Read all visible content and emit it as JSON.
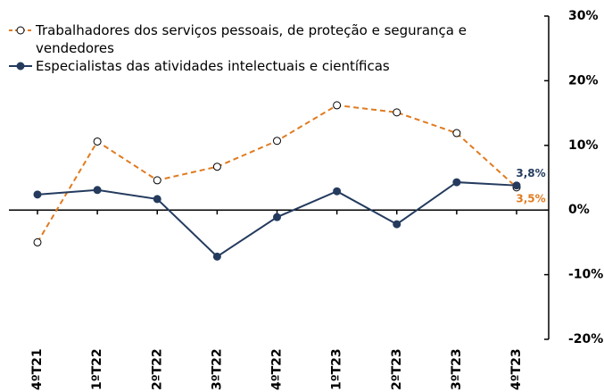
{
  "chart_data": {
    "type": "line",
    "categories": [
      "4ºT21",
      "1ºT22",
      "2ºT22",
      "3ºT22",
      "4ºT22",
      "1ºT23",
      "2ºT23",
      "3ºT23",
      "4ºT23"
    ],
    "series": [
      {
        "name": "Trabalhadores dos serviços pessoais, de proteção e segurança e vendedores",
        "color": "#e07b20",
        "dashed": true,
        "marker": "open",
        "values": [
          -5,
          10.6,
          4.6,
          6.7,
          10.7,
          16.2,
          15.1,
          11.9,
          3.5
        ],
        "value_labels": [
          null,
          null,
          null,
          null,
          null,
          null,
          null,
          null,
          "3,5%"
        ]
      },
      {
        "name": "Especialistas das atividades intelectuais e científicas",
        "color": "#243b5e",
        "dashed": false,
        "marker": "filled",
        "values": [
          2.4,
          3.1,
          1.7,
          -7.2,
          -1.1,
          2.9,
          -2.2,
          4.3,
          3.8
        ],
        "value_labels": [
          null,
          null,
          null,
          null,
          null,
          null,
          null,
          null,
          "3,8%"
        ]
      }
    ],
    "ylim": [
      -20,
      30
    ],
    "yticks": [
      {
        "value": -20,
        "label": "-20%"
      },
      {
        "value": -10,
        "label": "-10%"
      },
      {
        "value": 0,
        "label": "0%"
      },
      {
        "value": 10,
        "label": "10%"
      },
      {
        "value": 20,
        "label": "20%"
      },
      {
        "value": 30,
        "label": "30%"
      }
    ],
    "y_axis_side": "right"
  }
}
